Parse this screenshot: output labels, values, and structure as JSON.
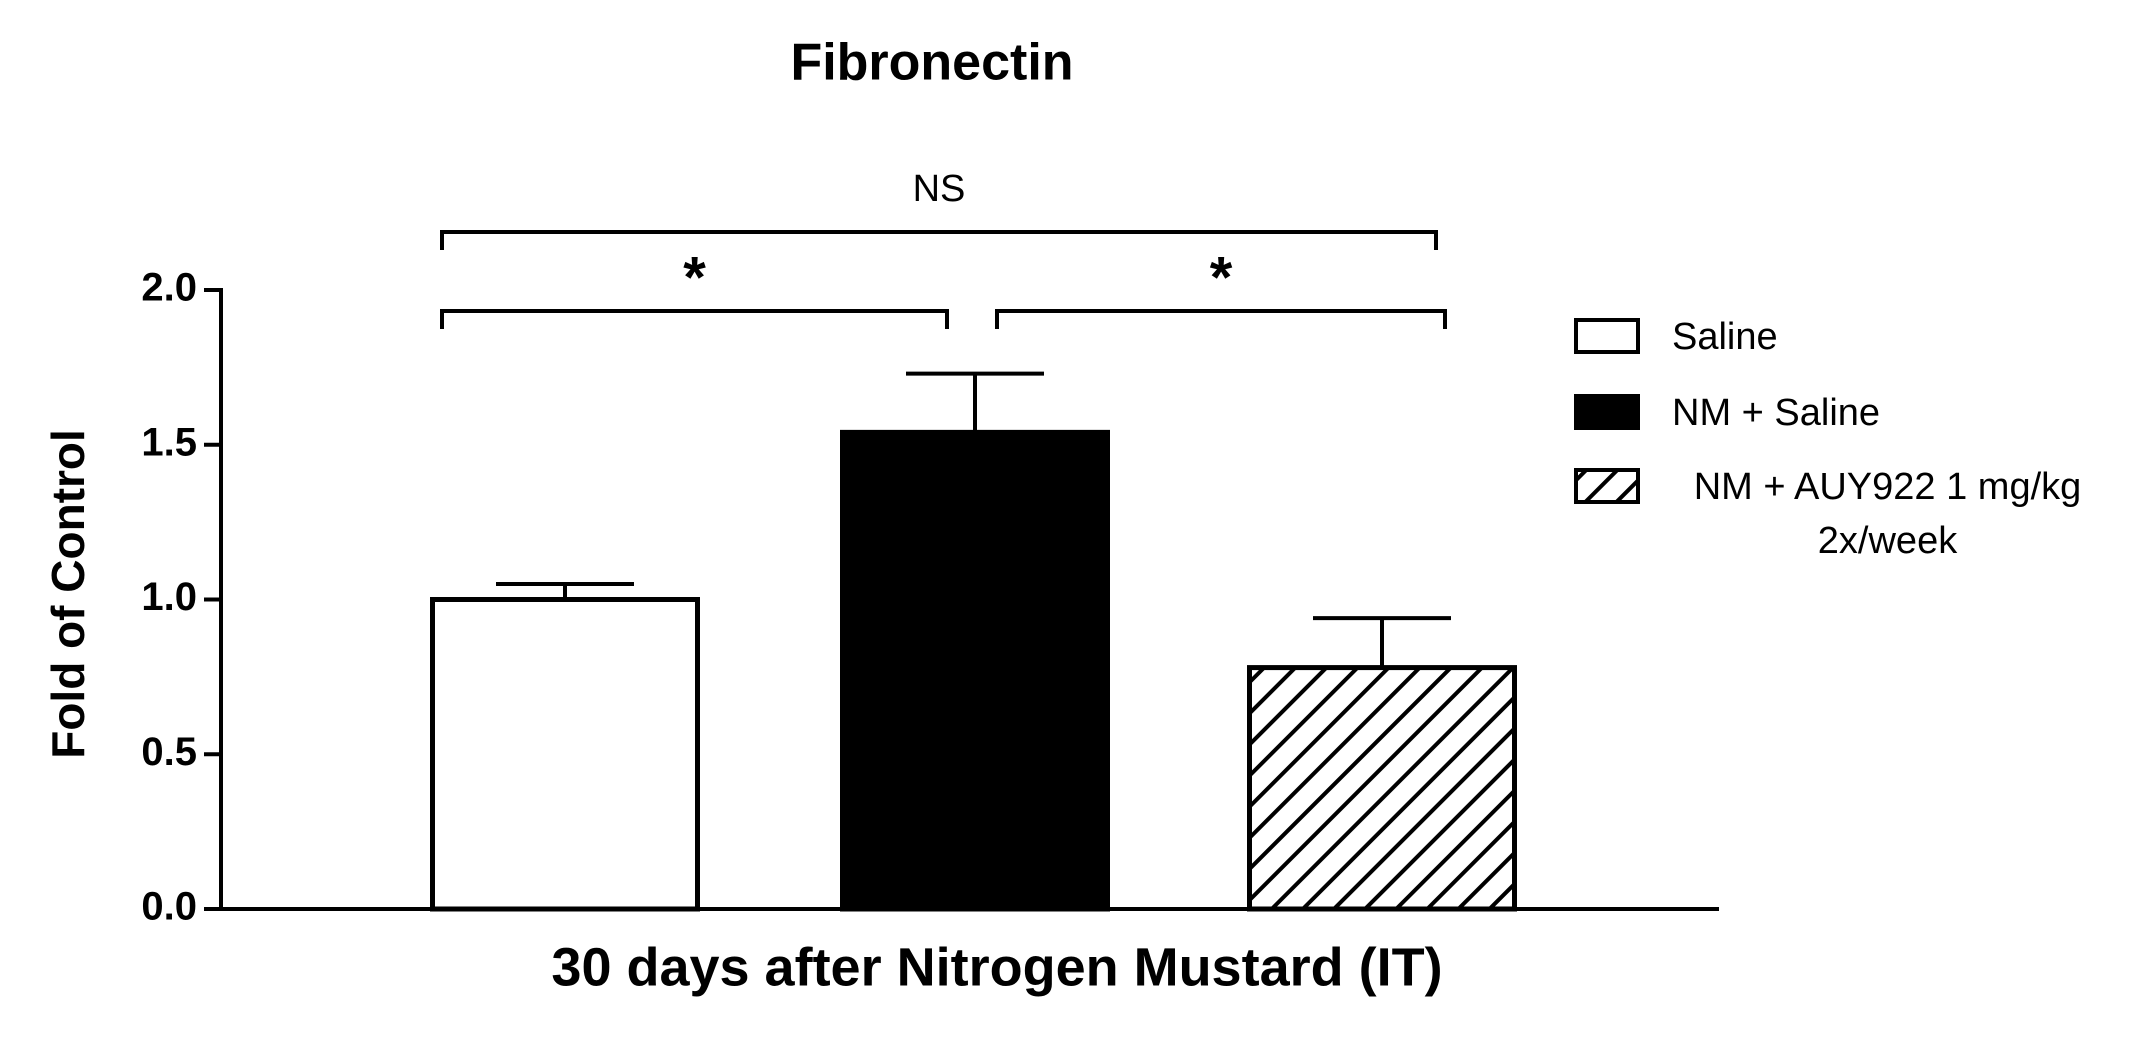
{
  "chart_data": {
    "type": "bar",
    "title": "Fibronectin",
    "x_label": "30 days after Nitrogen Mustard (IT)",
    "y_label": "Fold of Control",
    "categories": [
      null
    ],
    "series": [
      {
        "name": "Saline",
        "color": "#ffffff",
        "pattern": "none",
        "values": [
          1.0
        ],
        "errors": [
          0.05
        ]
      },
      {
        "name": "NM + Saline",
        "color": "#000000",
        "pattern": "none",
        "values": [
          1.54
        ],
        "errors": [
          0.19
        ]
      },
      {
        "name": "NM + AUY922 1 mg/kg 2x/week",
        "color": "#ffffff",
        "pattern": "hatch",
        "values": [
          0.78
        ],
        "errors": [
          0.16
        ]
      }
    ],
    "ylim": [
      0,
      2.0
    ],
    "yticks": [
      {
        "value": 0,
        "label": "0.0"
      },
      {
        "value": 0.5,
        "label": "0.5"
      },
      {
        "value": 1.0,
        "label": "1.0"
      },
      {
        "value": 1.5,
        "label": "1.5"
      },
      {
        "value": 2.0,
        "label": "2.0"
      }
    ],
    "annotations": [
      "NS",
      "*",
      "*"
    ],
    "legend": "right"
  }
}
